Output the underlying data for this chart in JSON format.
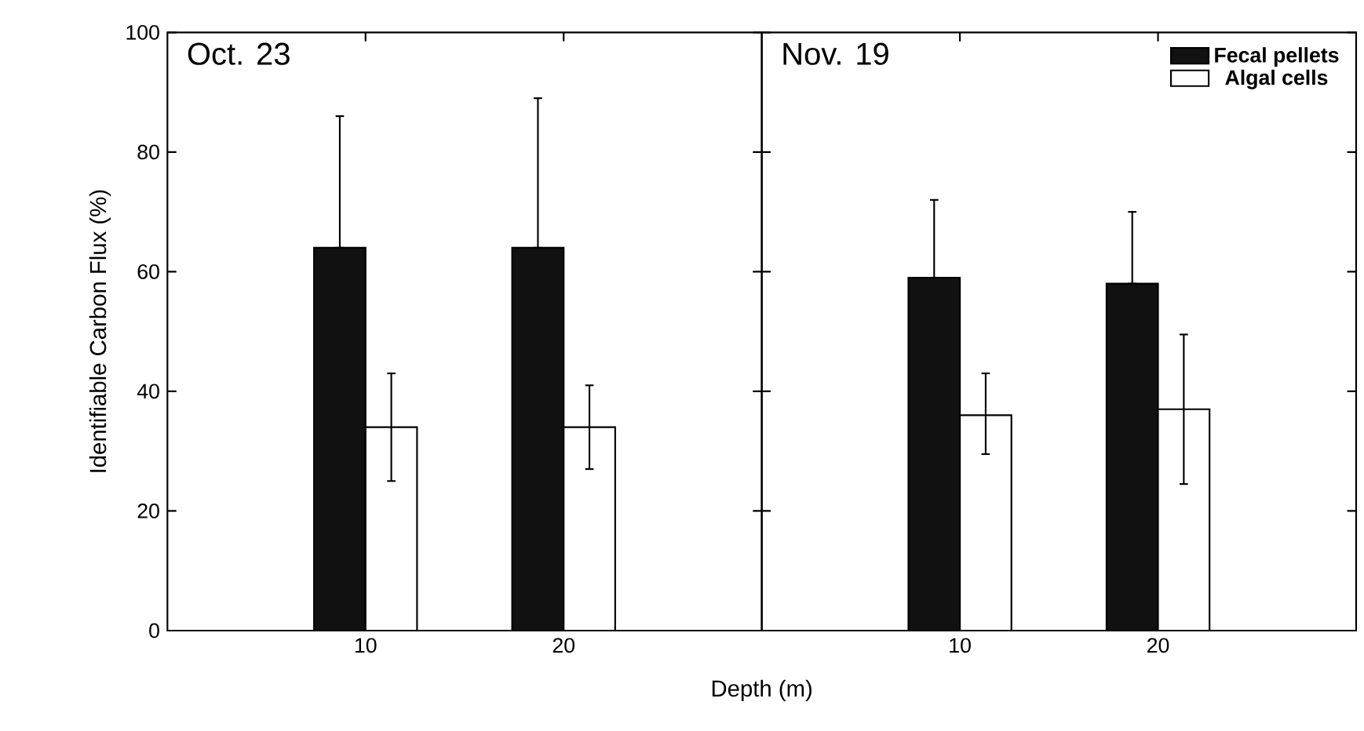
{
  "chart_data": [
    {
      "type": "bar",
      "title": "Oct. 23",
      "xlabel": "Depth (m)",
      "ylabel": "Identifiable Carbon Flux (%)",
      "categories": [
        "10",
        "20"
      ],
      "ylim": [
        0,
        100
      ],
      "yticks": [
        0,
        20,
        40,
        60,
        80,
        100
      ],
      "series": [
        {
          "color": "#111111",
          "values": [
            64,
            64
          ],
          "errors": [
            [
              64,
              86
            ],
            [
              64,
              89
            ]
          ]
        },
        {
          "color": "#ffffff",
          "values": [
            34,
            34
          ],
          "errors": [
            [
              25,
              43
            ],
            [
              27,
              41
            ]
          ]
        }
      ]
    },
    {
      "type": "bar",
      "title": "Nov. 19",
      "categories": [
        "10",
        "20"
      ],
      "ylim": [
        0,
        100
      ],
      "yticks": [
        0,
        20,
        40,
        60,
        80,
        100
      ],
      "legend": "top right",
      "tick_labels": "x",
      "series": [
        {
          "name": "Fecal pellets",
          "color": "#111111",
          "values": [
            59,
            58
          ],
          "errors": [
            [
              59,
              72
            ],
            [
              58,
              70
            ]
          ]
        },
        {
          "name": "Algal cells",
          "color": "#ffffff",
          "values": [
            36,
            37
          ],
          "errors": [
            [
              29.5,
              43
            ],
            [
              24.5,
              49.5
            ]
          ]
        }
      ]
    }
  ]
}
